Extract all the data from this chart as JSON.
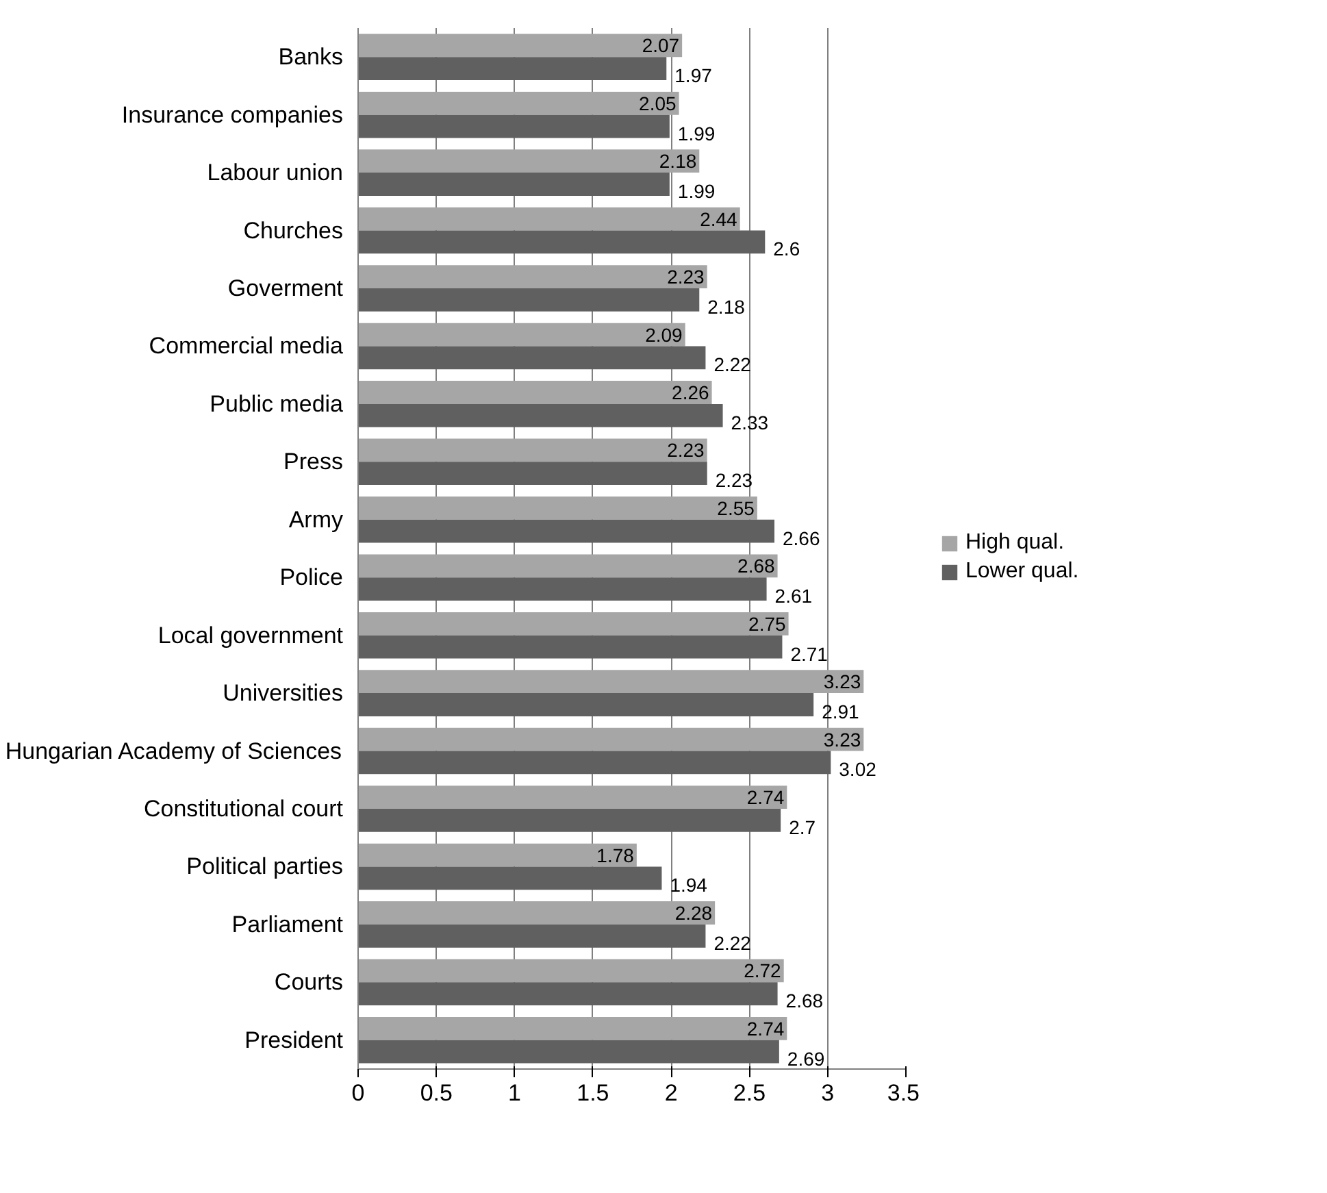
{
  "chart_data": {
    "type": "bar",
    "orientation": "horizontal",
    "categories": [
      "Banks",
      "Insurance companies",
      "Labour union",
      "Churches",
      "Goverment",
      "Commercial media",
      "Public media",
      "Press",
      "Army",
      "Police",
      "Local government",
      "Universities",
      "Hungarian Academy of Sciences",
      "Constitutional court",
      "Political parties",
      "Parliament",
      "Courts",
      "President"
    ],
    "series": [
      {
        "name": "High qual.",
        "color": "#a6a6a6",
        "values": [
          2.07,
          2.05,
          2.18,
          2.44,
          2.23,
          2.09,
          2.26,
          2.23,
          2.55,
          2.68,
          2.75,
          3.23,
          3.23,
          2.74,
          1.78,
          2.28,
          2.72,
          2.74
        ]
      },
      {
        "name": "Lower qual.",
        "color": "#606060",
        "values": [
          1.97,
          1.99,
          1.99,
          2.6,
          2.18,
          2.22,
          2.33,
          2.23,
          2.66,
          2.61,
          2.71,
          2.91,
          3.02,
          2.7,
          1.94,
          2.22,
          2.68,
          2.69
        ]
      }
    ],
    "xlim": [
      0,
      3.5
    ],
    "xticks": [
      0,
      0.5,
      1,
      1.5,
      2,
      2.5,
      3,
      3.5
    ],
    "grid": "x",
    "legend": "right",
    "data_labels": true
  }
}
